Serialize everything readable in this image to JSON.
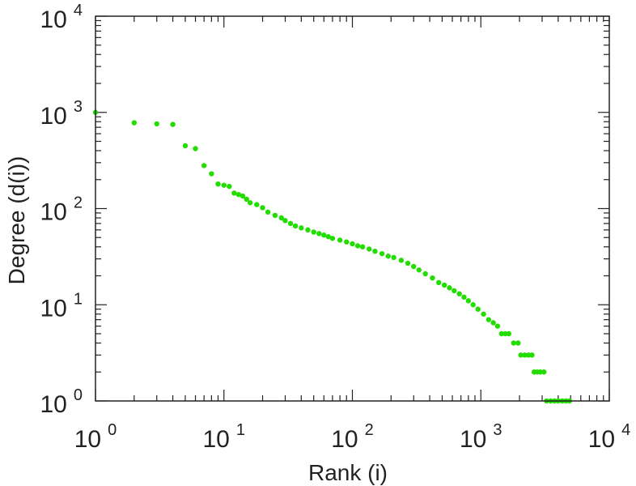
{
  "chart_data": {
    "type": "scatter",
    "title": "",
    "xlabel": "Rank (i)",
    "ylabel": "Degree (d(i))",
    "xscale": "log",
    "yscale": "log",
    "xlim": [
      1,
      10000
    ],
    "ylim": [
      1,
      10000
    ],
    "grid": false,
    "x_ticks": [
      {
        "base": "10",
        "exp": "0"
      },
      {
        "base": "10",
        "exp": "1"
      },
      {
        "base": "10",
        "exp": "2"
      },
      {
        "base": "10",
        "exp": "3"
      },
      {
        "base": "10",
        "exp": "4"
      }
    ],
    "y_ticks": [
      {
        "base": "10",
        "exp": "0"
      },
      {
        "base": "10",
        "exp": "1"
      },
      {
        "base": "10",
        "exp": "2"
      },
      {
        "base": "10",
        "exp": "3"
      },
      {
        "base": "10",
        "exp": "4"
      }
    ],
    "marker_color": "#22dd00",
    "series": [
      {
        "points": [
          [
            1,
            1000
          ],
          [
            2,
            780
          ],
          [
            3,
            760
          ],
          [
            4,
            750
          ],
          [
            5,
            450
          ],
          [
            6,
            420
          ],
          [
            7,
            280
          ],
          [
            8,
            230
          ],
          [
            9,
            180
          ],
          [
            10,
            175
          ],
          [
            11,
            170
          ],
          [
            12,
            145
          ],
          [
            13,
            140
          ],
          [
            14,
            135
          ],
          [
            15,
            125
          ],
          [
            16,
            115
          ],
          [
            18,
            110
          ],
          [
            20,
            102
          ],
          [
            22,
            92
          ],
          [
            25,
            85
          ],
          [
            28,
            80
          ],
          [
            30,
            75
          ],
          [
            33,
            70
          ],
          [
            36,
            66
          ],
          [
            40,
            63
          ],
          [
            45,
            60
          ],
          [
            50,
            57
          ],
          [
            55,
            55
          ],
          [
            60,
            53
          ],
          [
            65,
            51
          ],
          [
            70,
            49
          ],
          [
            80,
            47
          ],
          [
            90,
            45
          ],
          [
            100,
            43
          ],
          [
            110,
            41
          ],
          [
            120,
            40
          ],
          [
            135,
            38
          ],
          [
            150,
            36
          ],
          [
            170,
            34
          ],
          [
            190,
            32
          ],
          [
            210,
            31
          ],
          [
            240,
            29
          ],
          [
            270,
            27
          ],
          [
            300,
            25
          ],
          [
            330,
            23
          ],
          [
            370,
            21
          ],
          [
            420,
            19
          ],
          [
            470,
            17
          ],
          [
            520,
            16
          ],
          [
            570,
            15
          ],
          [
            620,
            14
          ],
          [
            680,
            13
          ],
          [
            740,
            12
          ],
          [
            800,
            11
          ],
          [
            870,
            10
          ],
          [
            950,
            9
          ],
          [
            1050,
            8
          ],
          [
            1150,
            7
          ],
          [
            1250,
            6.5
          ],
          [
            1350,
            6
          ],
          [
            1450,
            5
          ],
          [
            1550,
            5
          ],
          [
            1650,
            5
          ],
          [
            1800,
            4
          ],
          [
            1950,
            4
          ],
          [
            2050,
            3
          ],
          [
            2200,
            3
          ],
          [
            2350,
            3
          ],
          [
            2500,
            3
          ],
          [
            2600,
            2
          ],
          [
            2750,
            2
          ],
          [
            2900,
            2
          ],
          [
            3100,
            2
          ],
          [
            3250,
            1
          ],
          [
            3500,
            1
          ],
          [
            3750,
            1
          ],
          [
            4000,
            1
          ],
          [
            4300,
            1
          ],
          [
            4600,
            1
          ],
          [
            4900,
            1
          ]
        ]
      }
    ]
  }
}
